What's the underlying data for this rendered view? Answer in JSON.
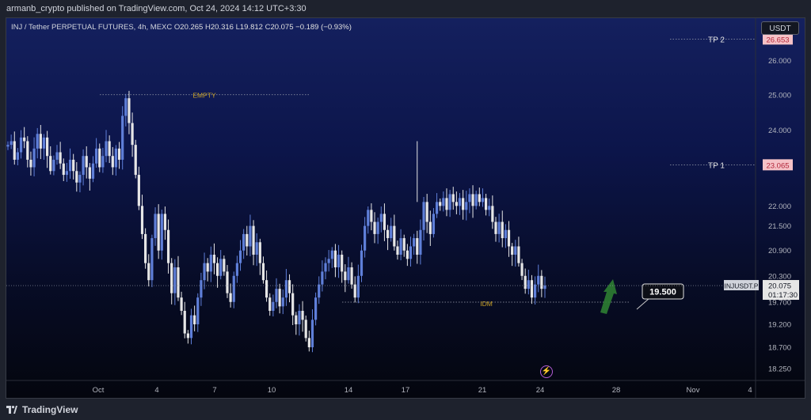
{
  "header": {
    "text": "armanb_crypto published on TradingView.com, Oct 24, 2024 14:12 UTC+3:30"
  },
  "legend": {
    "symbol": "INJ / Tether PERPETUAL FUTURES, 4h, MEXC",
    "o_label": "O",
    "o": "20.265",
    "h_label": "H",
    "h": "20.316",
    "l_label": "L",
    "l": "19.812",
    "c_label": "C",
    "c": "20.075",
    "change": "−0.189 (−0.93%)"
  },
  "currency_button": "USDT",
  "footer": {
    "brand": "TradingView"
  },
  "colors": {
    "up": "#5f7fd9",
    "down": "#e6e6e6",
    "accent_gold": "#c9a227",
    "tp_badge": "#f5c2c7",
    "tp_badge_text": "#b2263a",
    "arrow": "#2e7d32"
  },
  "icons": {
    "bolt": "lightning-bolt-icon",
    "logo": "tradingview-logo-icon"
  },
  "chart_data": {
    "type": "candlestick",
    "timeframe": "4h",
    "x_tick_labels": [
      "Oct",
      "4",
      "7",
      "10",
      "14",
      "17",
      "21",
      "24",
      "28",
      "Nov",
      "4"
    ],
    "y_tick_labels": [
      "26.000",
      "25.000",
      "24.000",
      "22.000",
      "21.500",
      "20.900",
      "20.300",
      "19.700",
      "19.200",
      "18.700",
      "18.250"
    ],
    "y_ticks": [
      26.0,
      25.0,
      24.0,
      22.0,
      21.5,
      20.9,
      20.3,
      19.7,
      19.2,
      18.7,
      18.25
    ],
    "y_scale": "log",
    "ylim": [
      18.0,
      27.3
    ],
    "series": [
      {
        "name": "INJUSDT.P",
        "last": 20.075,
        "last_label": "20.075",
        "countdown": "01:17:30",
        "closes": [
          23.6,
          23.7,
          23.2,
          23.4,
          23.8,
          23.7,
          23.2,
          23.0,
          23.5,
          23.9,
          23.5,
          23.8,
          23.3,
          22.9,
          23.2,
          23.4,
          23.1,
          22.8,
          22.9,
          23.2,
          22.9,
          22.6,
          22.8,
          23.3,
          23.0,
          22.7,
          23.1,
          23.5,
          23.0,
          23.3,
          23.7,
          23.3,
          23.0,
          23.5,
          23.2,
          24.4,
          24.9,
          24.2,
          23.6,
          22.8,
          22.0,
          21.3,
          20.6,
          20.2,
          21.2,
          21.8,
          20.9,
          21.8,
          21.4,
          20.6,
          19.9,
          20.5,
          19.8,
          19.5,
          19.0,
          18.9,
          19.4,
          19.2,
          19.8,
          20.2,
          20.6,
          20.4,
          20.8,
          20.6,
          20.3,
          20.7,
          20.4,
          19.9,
          19.7,
          20.3,
          20.6,
          20.9,
          21.3,
          21.0,
          21.5,
          20.8,
          21.1,
          20.6,
          20.2,
          19.8,
          19.5,
          19.7,
          20.0,
          19.6,
          19.8,
          20.2,
          19.9,
          19.4,
          19.2,
          19.5,
          19.3,
          18.9,
          18.7,
          19.3,
          19.8,
          20.1,
          20.4,
          20.6,
          20.7,
          20.9,
          20.5,
          20.8,
          20.4,
          20.2,
          20.5,
          20.1,
          19.8,
          20.3,
          20.9,
          21.5,
          21.9,
          21.6,
          21.3,
          21.6,
          21.8,
          21.4,
          21.2,
          21.5,
          21.0,
          20.8,
          21.2,
          20.9,
          20.7,
          21.0,
          21.2,
          20.8,
          21.4,
          22.1,
          21.6,
          21.3,
          21.8,
          22.1,
          22.0,
          22.2,
          21.9,
          22.3,
          22.1,
          22.0,
          22.2,
          21.9,
          22.1,
          22.3,
          22.0,
          22.3,
          22.1,
          22.2,
          21.9,
          22.0,
          21.6,
          21.3,
          21.6,
          21.2,
          21.4,
          21.0,
          20.8,
          21.0,
          20.6,
          20.3,
          20.0,
          20.2,
          19.8,
          20.1,
          20.3,
          20.0,
          20.075
        ]
      }
    ],
    "annotations": [
      {
        "text": "TP 2",
        "price": 26.653,
        "label": "26.653"
      },
      {
        "text": "TP 1",
        "price": 23.065,
        "label": "23.065"
      },
      {
        "text": "EMPTY",
        "price": 25.0
      },
      {
        "text": "IDM",
        "price": 19.7
      },
      {
        "text": "19.500",
        "price": 19.5
      }
    ]
  }
}
